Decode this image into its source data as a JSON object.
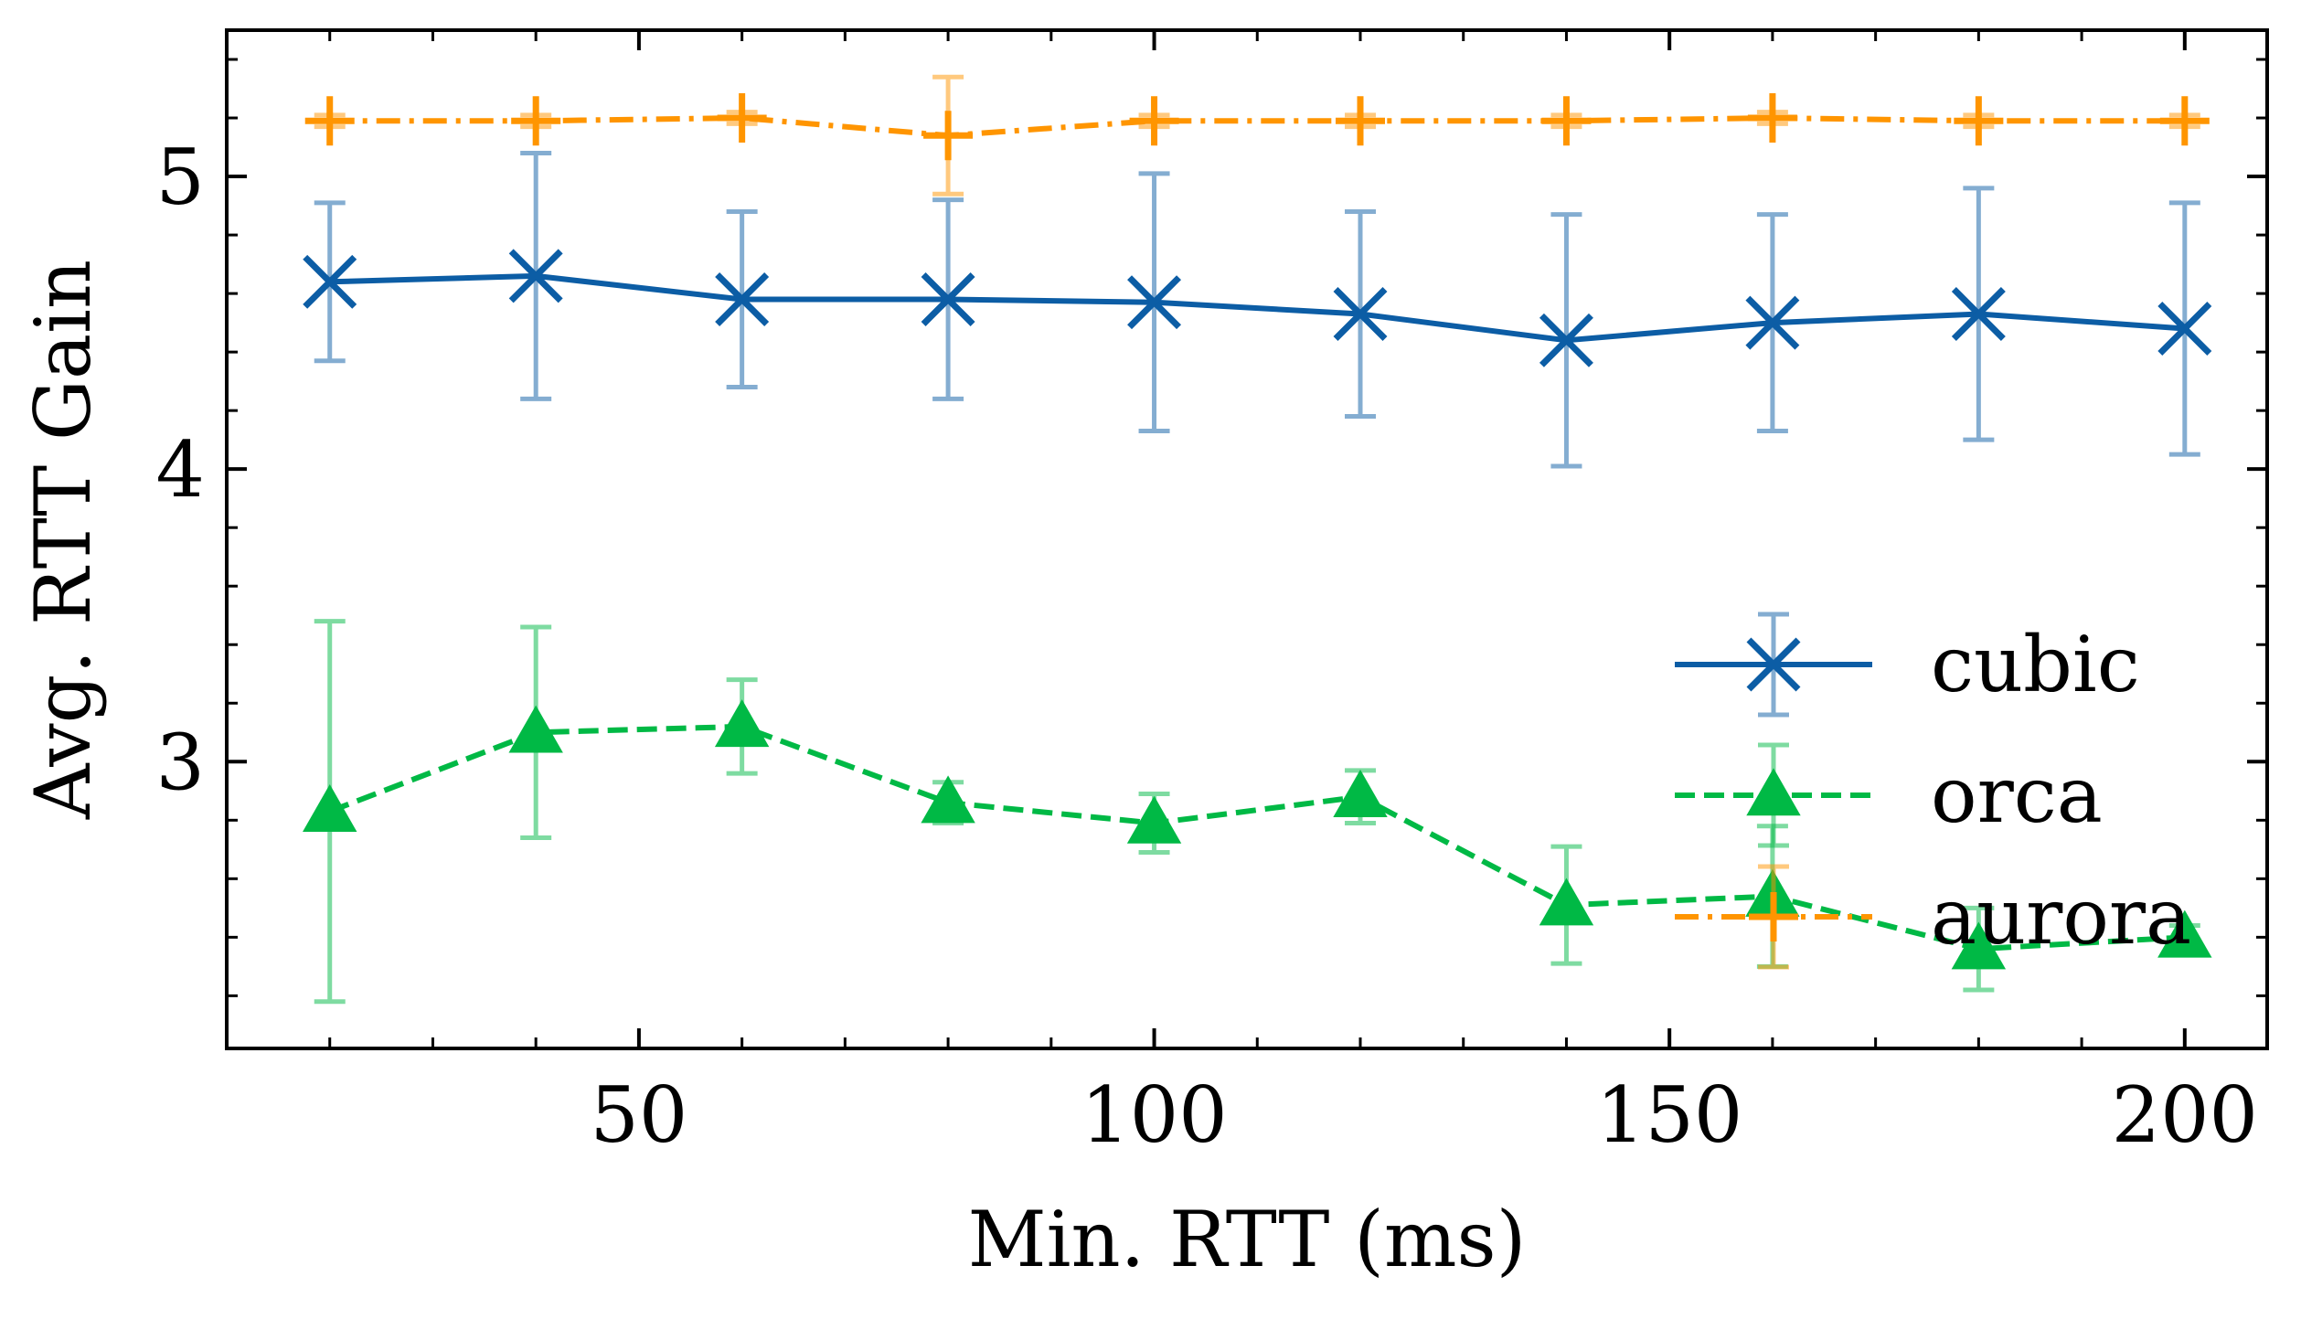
{
  "chart_data": {
    "type": "line",
    "title": "",
    "xlabel": "Min. RTT (ms)",
    "ylabel": "Avg. RTT Gain",
    "xlim": [
      10,
      208
    ],
    "ylim": [
      2.02,
      5.5
    ],
    "xticks": [
      50,
      100,
      150,
      200
    ],
    "xtick_labels": [
      "50",
      "100",
      "150",
      "200"
    ],
    "yticks": [
      3,
      4,
      5
    ],
    "ytick_labels": [
      "3",
      "4",
      "5"
    ],
    "grid": false,
    "legend_position": "center-right",
    "x": [
      20,
      40,
      60,
      80,
      100,
      120,
      140,
      160,
      180,
      200
    ],
    "series": [
      {
        "name": "cubic",
        "color": "#0C5DA5",
        "marker": "x",
        "linestyle": "solid",
        "values": [
          4.64,
          4.66,
          4.58,
          4.58,
          4.57,
          4.53,
          4.44,
          4.5,
          4.53,
          4.48
        ],
        "errors": [
          0.27,
          0.42,
          0.3,
          0.34,
          0.44,
          0.35,
          0.43,
          0.37,
          0.43,
          0.43
        ]
      },
      {
        "name": "orca",
        "color": "#00B945",
        "marker": "triangle-up",
        "linestyle": "dashed",
        "values": [
          2.83,
          3.1,
          3.12,
          2.86,
          2.79,
          2.88,
          2.51,
          2.54,
          2.36,
          2.4
        ],
        "errors": [
          0.65,
          0.36,
          0.16,
          0.07,
          0.1,
          0.09,
          0.2,
          0.24,
          0.14,
          0.04
        ]
      },
      {
        "name": "aurora",
        "color": "#FF9500",
        "marker": "plus",
        "linestyle": "dashdot",
        "values": [
          5.19,
          5.19,
          5.2,
          5.14,
          5.19,
          5.19,
          5.19,
          5.2,
          5.19,
          5.19
        ],
        "errors": [
          0.02,
          0.02,
          0.02,
          0.2,
          0.02,
          0.02,
          0.02,
          0.02,
          0.02,
          0.02
        ]
      }
    ]
  }
}
